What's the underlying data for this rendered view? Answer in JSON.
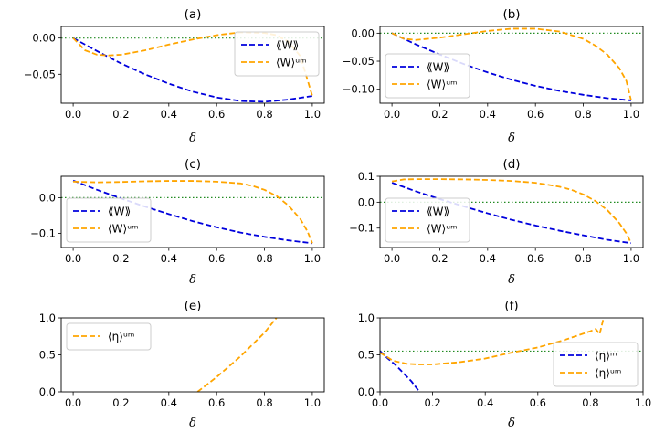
{
  "chart_data": [
    {
      "panel": "a",
      "type": "line",
      "title": "(a)",
      "xlabel": "δ",
      "ylabel": "",
      "xlim": [
        -0.05,
        1.05
      ],
      "ylim": [
        -0.09,
        0.016
      ],
      "xticks": [
        0.0,
        0.2,
        0.4,
        0.6,
        0.8,
        1.0
      ],
      "xtick_labels": [
        "0.0",
        "0.2",
        "0.4",
        "0.6",
        "0.8",
        "1.0"
      ],
      "yticks": [
        0.0,
        -0.05
      ],
      "ytick_labels": [
        "0.00",
        "−0.05"
      ],
      "hline": 0,
      "legend": "upper right",
      "series": [
        {
          "name": "⟪W⟫",
          "color": "#0000dd",
          "x": [
            0,
            0.1,
            0.2,
            0.3,
            0.4,
            0.5,
            0.6,
            0.7,
            0.8,
            0.9,
            1.0
          ],
          "y": [
            0,
            -0.018,
            -0.035,
            -0.05,
            -0.063,
            -0.074,
            -0.082,
            -0.087,
            -0.088,
            -0.085,
            -0.08
          ]
        },
        {
          "name": "⟨W⟩ᵘᵐ",
          "color": "#ffa500",
          "x": [
            0,
            0.05,
            0.1,
            0.15,
            0.2,
            0.3,
            0.4,
            0.5,
            0.6,
            0.7,
            0.8,
            0.85,
            0.9,
            0.95,
            1.0
          ],
          "y": [
            0,
            -0.017,
            -0.023,
            -0.024,
            -0.023,
            -0.017,
            -0.009,
            -0.002,
            0.004,
            0.008,
            0.007,
            0.004,
            -0.005,
            -0.025,
            -0.08
          ]
        }
      ]
    },
    {
      "panel": "b",
      "type": "line",
      "title": "(b)",
      "xlabel": "δ",
      "ylabel": "",
      "xlim": [
        -0.05,
        1.05
      ],
      "ylim": [
        -0.125,
        0.012
      ],
      "xticks": [
        0.0,
        0.2,
        0.4,
        0.6,
        0.8,
        1.0
      ],
      "xtick_labels": [
        "0.0",
        "0.2",
        "0.4",
        "0.6",
        "0.8",
        "1.0"
      ],
      "yticks": [
        0.0,
        -0.05,
        -0.1
      ],
      "ytick_labels": [
        "0.00",
        "−0.05",
        "−0.10"
      ],
      "hline": 0,
      "legend": "lower left",
      "series": [
        {
          "name": "⟪W⟫",
          "color": "#0000dd",
          "x": [
            0,
            0.1,
            0.2,
            0.3,
            0.4,
            0.5,
            0.6,
            0.7,
            0.8,
            0.9,
            1.0
          ],
          "y": [
            0,
            -0.02,
            -0.038,
            -0.055,
            -0.07,
            -0.083,
            -0.094,
            -0.103,
            -0.11,
            -0.116,
            -0.12
          ]
        },
        {
          "name": "⟨W⟩ᵘᵐ",
          "color": "#ffa500",
          "x": [
            0,
            0.05,
            0.1,
            0.2,
            0.3,
            0.4,
            0.5,
            0.6,
            0.7,
            0.8,
            0.85,
            0.9,
            0.95,
            0.98,
            1.0
          ],
          "y": [
            0,
            -0.01,
            -0.012,
            -0.008,
            -0.002,
            0.004,
            0.008,
            0.008,
            0.003,
            -0.01,
            -0.022,
            -0.038,
            -0.062,
            -0.085,
            -0.12
          ]
        }
      ]
    },
    {
      "panel": "c",
      "type": "line",
      "title": "(c)",
      "xlabel": "δ",
      "ylabel": "",
      "xlim": [
        -0.05,
        1.05
      ],
      "ylim": [
        -0.14,
        0.06
      ],
      "xticks": [
        0.0,
        0.2,
        0.4,
        0.6,
        0.8,
        1.0
      ],
      "xtick_labels": [
        "0.0",
        "0.2",
        "0.4",
        "0.6",
        "0.8",
        "1.0"
      ],
      "yticks": [
        0.0,
        -0.1
      ],
      "ytick_labels": [
        "0.0",
        "−0.1"
      ],
      "hline": 0,
      "legend": "lower left",
      "series": [
        {
          "name": "⟪W⟫",
          "color": "#0000dd",
          "x": [
            0,
            0.1,
            0.2,
            0.3,
            0.4,
            0.5,
            0.6,
            0.7,
            0.8,
            0.9,
            1.0
          ],
          "y": [
            0.048,
            0.022,
            -0.002,
            -0.025,
            -0.046,
            -0.066,
            -0.083,
            -0.098,
            -0.11,
            -0.12,
            -0.128
          ]
        },
        {
          "name": "⟨W⟩ᵘᵐ",
          "color": "#ffa500",
          "x": [
            0,
            0.1,
            0.2,
            0.3,
            0.4,
            0.5,
            0.6,
            0.7,
            0.75,
            0.8,
            0.85,
            0.9,
            0.95,
            0.98,
            1.0
          ],
          "y": [
            0.045,
            0.043,
            0.044,
            0.046,
            0.047,
            0.047,
            0.045,
            0.04,
            0.033,
            0.022,
            0.005,
            -0.022,
            -0.06,
            -0.095,
            -0.128
          ]
        }
      ]
    },
    {
      "panel": "d",
      "type": "line",
      "title": "(d)",
      "xlabel": "δ",
      "ylabel": "",
      "xlim": [
        -0.05,
        1.05
      ],
      "ylim": [
        -0.175,
        0.1
      ],
      "xticks": [
        0.0,
        0.2,
        0.4,
        0.6,
        0.8,
        1.0
      ],
      "xtick_labels": [
        "0.0",
        "0.2",
        "0.4",
        "0.6",
        "0.8",
        "1.0"
      ],
      "yticks": [
        0.1,
        0.0,
        -0.1
      ],
      "ytick_labels": [
        "0.1",
        "0.0",
        "−0.1"
      ],
      "hline": 0,
      "legend": "lower left",
      "series": [
        {
          "name": "⟪W⟫",
          "color": "#0000dd",
          "x": [
            0,
            0.1,
            0.2,
            0.3,
            0.4,
            0.5,
            0.6,
            0.7,
            0.8,
            0.9,
            1.0
          ],
          "y": [
            0.075,
            0.042,
            0.012,
            -0.016,
            -0.043,
            -0.068,
            -0.09,
            -0.11,
            -0.128,
            -0.145,
            -0.158
          ]
        },
        {
          "name": "⟨W⟩ᵘᵐ",
          "color": "#ffa500",
          "x": [
            0,
            0.05,
            0.1,
            0.2,
            0.3,
            0.4,
            0.5,
            0.6,
            0.7,
            0.75,
            0.8,
            0.85,
            0.9,
            0.95,
            0.98,
            1.0
          ],
          "y": [
            0.08,
            0.088,
            0.089,
            0.089,
            0.088,
            0.086,
            0.082,
            0.075,
            0.06,
            0.048,
            0.03,
            0.005,
            -0.03,
            -0.08,
            -0.12,
            -0.158
          ]
        }
      ]
    },
    {
      "panel": "e",
      "type": "line",
      "title": "(e)",
      "xlabel": "δ",
      "ylabel": "",
      "xlim": [
        -0.05,
        1.05
      ],
      "ylim": [
        0.0,
        1.0
      ],
      "xticks": [
        0.0,
        0.2,
        0.4,
        0.6,
        0.8,
        1.0
      ],
      "xtick_labels": [
        "0.0",
        "0.2",
        "0.4",
        "0.6",
        "0.8",
        "1.0"
      ],
      "yticks": [
        0.0,
        0.5,
        1.0
      ],
      "ytick_labels": [
        "0.0",
        "0.5",
        "1.0"
      ],
      "hline": null,
      "legend": "upper left",
      "series": [
        {
          "name": "⟨η⟩ᵘᵐ",
          "color": "#ffa500",
          "x": [
            0.52,
            0.6,
            0.7,
            0.8,
            0.85
          ],
          "y": [
            0.0,
            0.2,
            0.48,
            0.8,
            1.0
          ]
        }
      ]
    },
    {
      "panel": "f",
      "type": "line",
      "title": "(f)",
      "xlabel": "δ",
      "ylabel": "",
      "xlim": [
        0.0,
        1.0
      ],
      "ylim": [
        0.0,
        1.0
      ],
      "xticks": [
        0.0,
        0.2,
        0.4,
        0.6,
        0.8,
        1.0
      ],
      "xtick_labels": [
        "0.0",
        "0.2",
        "0.4",
        "0.6",
        "0.8",
        "1.0"
      ],
      "yticks": [
        0.0,
        0.5,
        1.0
      ],
      "ytick_labels": [
        "0.0",
        "0.5",
        "1.0"
      ],
      "hline": 0.55,
      "legend": "lower right",
      "series": [
        {
          "name": "⟨η⟩ᵐ",
          "color": "#0000dd",
          "x": [
            0,
            0.03,
            0.06,
            0.09,
            0.12,
            0.15
          ],
          "y": [
            0.55,
            0.45,
            0.36,
            0.25,
            0.14,
            0.0
          ]
        },
        {
          "name": "⟨η⟩ᵘᵐ",
          "color": "#ffa500",
          "x": [
            0,
            0.05,
            0.1,
            0.15,
            0.2,
            0.3,
            0.4,
            0.5,
            0.6,
            0.7,
            0.75,
            0.8,
            0.82,
            0.835,
            0.85
          ],
          "y": [
            0.53,
            0.42,
            0.38,
            0.37,
            0.37,
            0.4,
            0.45,
            0.53,
            0.6,
            0.7,
            0.76,
            0.82,
            0.85,
            0.78,
            1.0
          ]
        }
      ]
    }
  ]
}
